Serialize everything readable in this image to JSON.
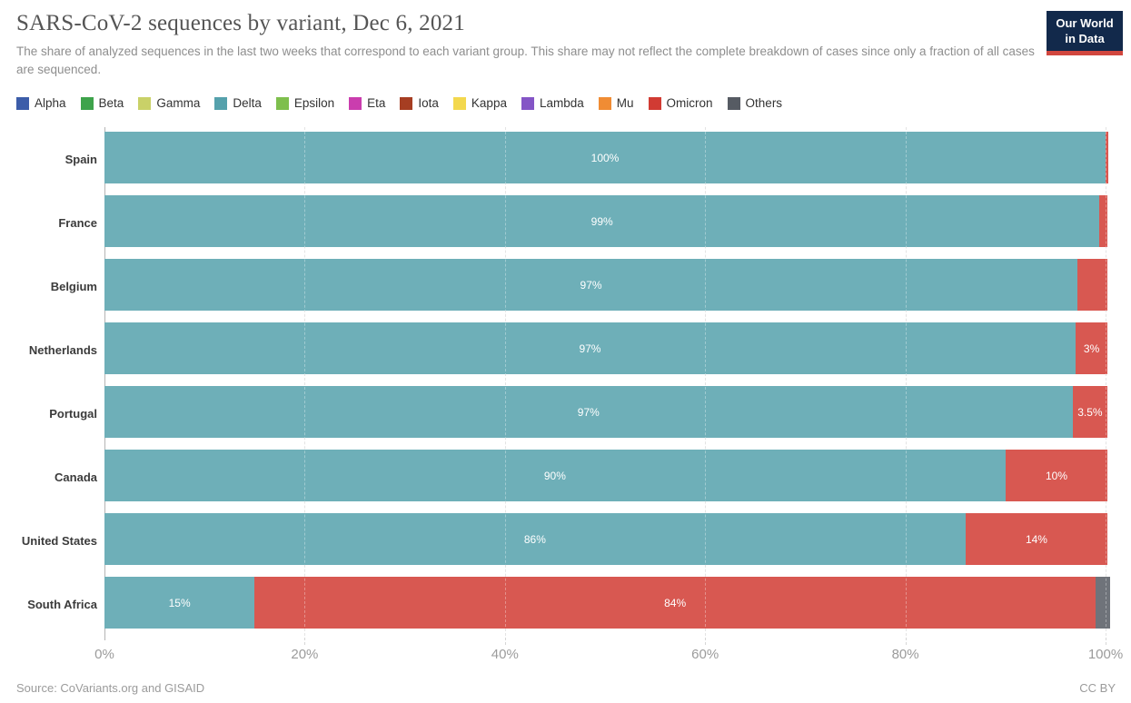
{
  "header": {
    "title": "SARS-CoV-2 sequences by variant, Dec 6, 2021",
    "subtitle": "The share of analyzed sequences in the last two weeks that correspond to each variant group. This share may not reflect the complete breakdown of cases since only a fraction of all cases are sequenced.",
    "logo": {
      "line1": "Our World",
      "line2": "in Data",
      "bg_color": "#12294B",
      "accent_color": "#D1463E"
    }
  },
  "legend": [
    {
      "label": "Alpha",
      "color": "#3C5DA9"
    },
    {
      "label": "Beta",
      "color": "#3EA34B"
    },
    {
      "label": "Gamma",
      "color": "#C9D168"
    },
    {
      "label": "Delta",
      "color": "#55A1AC"
    },
    {
      "label": "Epsilon",
      "color": "#7EBF4D"
    },
    {
      "label": "Eta",
      "color": "#CA3DAE"
    },
    {
      "label": "Iota",
      "color": "#A63E22"
    },
    {
      "label": "Kappa",
      "color": "#F3D84E"
    },
    {
      "label": "Lambda",
      "color": "#8455C6"
    },
    {
      "label": "Mu",
      "color": "#F08C34"
    },
    {
      "label": "Omicron",
      "color": "#D13B33"
    },
    {
      "label": "Others",
      "color": "#565B63"
    }
  ],
  "chart_data": {
    "type": "bar",
    "orientation": "horizontal",
    "stacked": true,
    "title": "SARS-CoV-2 sequences by variant, Dec 6, 2021",
    "categories": [
      "Spain",
      "France",
      "Belgium",
      "Netherlands",
      "Portugal",
      "Canada",
      "United States",
      "South Africa"
    ],
    "series": [
      {
        "name": "Delta",
        "values": [
          100,
          99.4,
          97.2,
          97,
          96.7,
          90,
          86,
          15
        ],
        "labels": [
          "100%",
          "99%",
          "97%",
          "97%",
          "97%",
          "90%",
          "86%",
          "15%"
        ]
      },
      {
        "name": "Omicron",
        "values": [
          0.25,
          0.8,
          3,
          3.2,
          3.5,
          10.2,
          14.2,
          84
        ],
        "labels": [
          "",
          "",
          "",
          "3%",
          "3.5%",
          "10%",
          "14%",
          "84%"
        ]
      },
      {
        "name": "Others",
        "values": [
          0,
          0,
          0,
          0,
          0,
          0,
          0,
          1.5
        ],
        "labels": [
          "",
          "",
          "",
          "",
          "",
          "",
          "",
          ""
        ]
      }
    ],
    "x_ticks": [
      "0%",
      "20%",
      "40%",
      "60%",
      "80%",
      "100%"
    ],
    "xlim": [
      0,
      100
    ],
    "legend_position": "top",
    "grid": "vertical-dashed"
  },
  "footer": {
    "source": "Source: CoVariants.org and GISAID",
    "license": "CC BY"
  }
}
